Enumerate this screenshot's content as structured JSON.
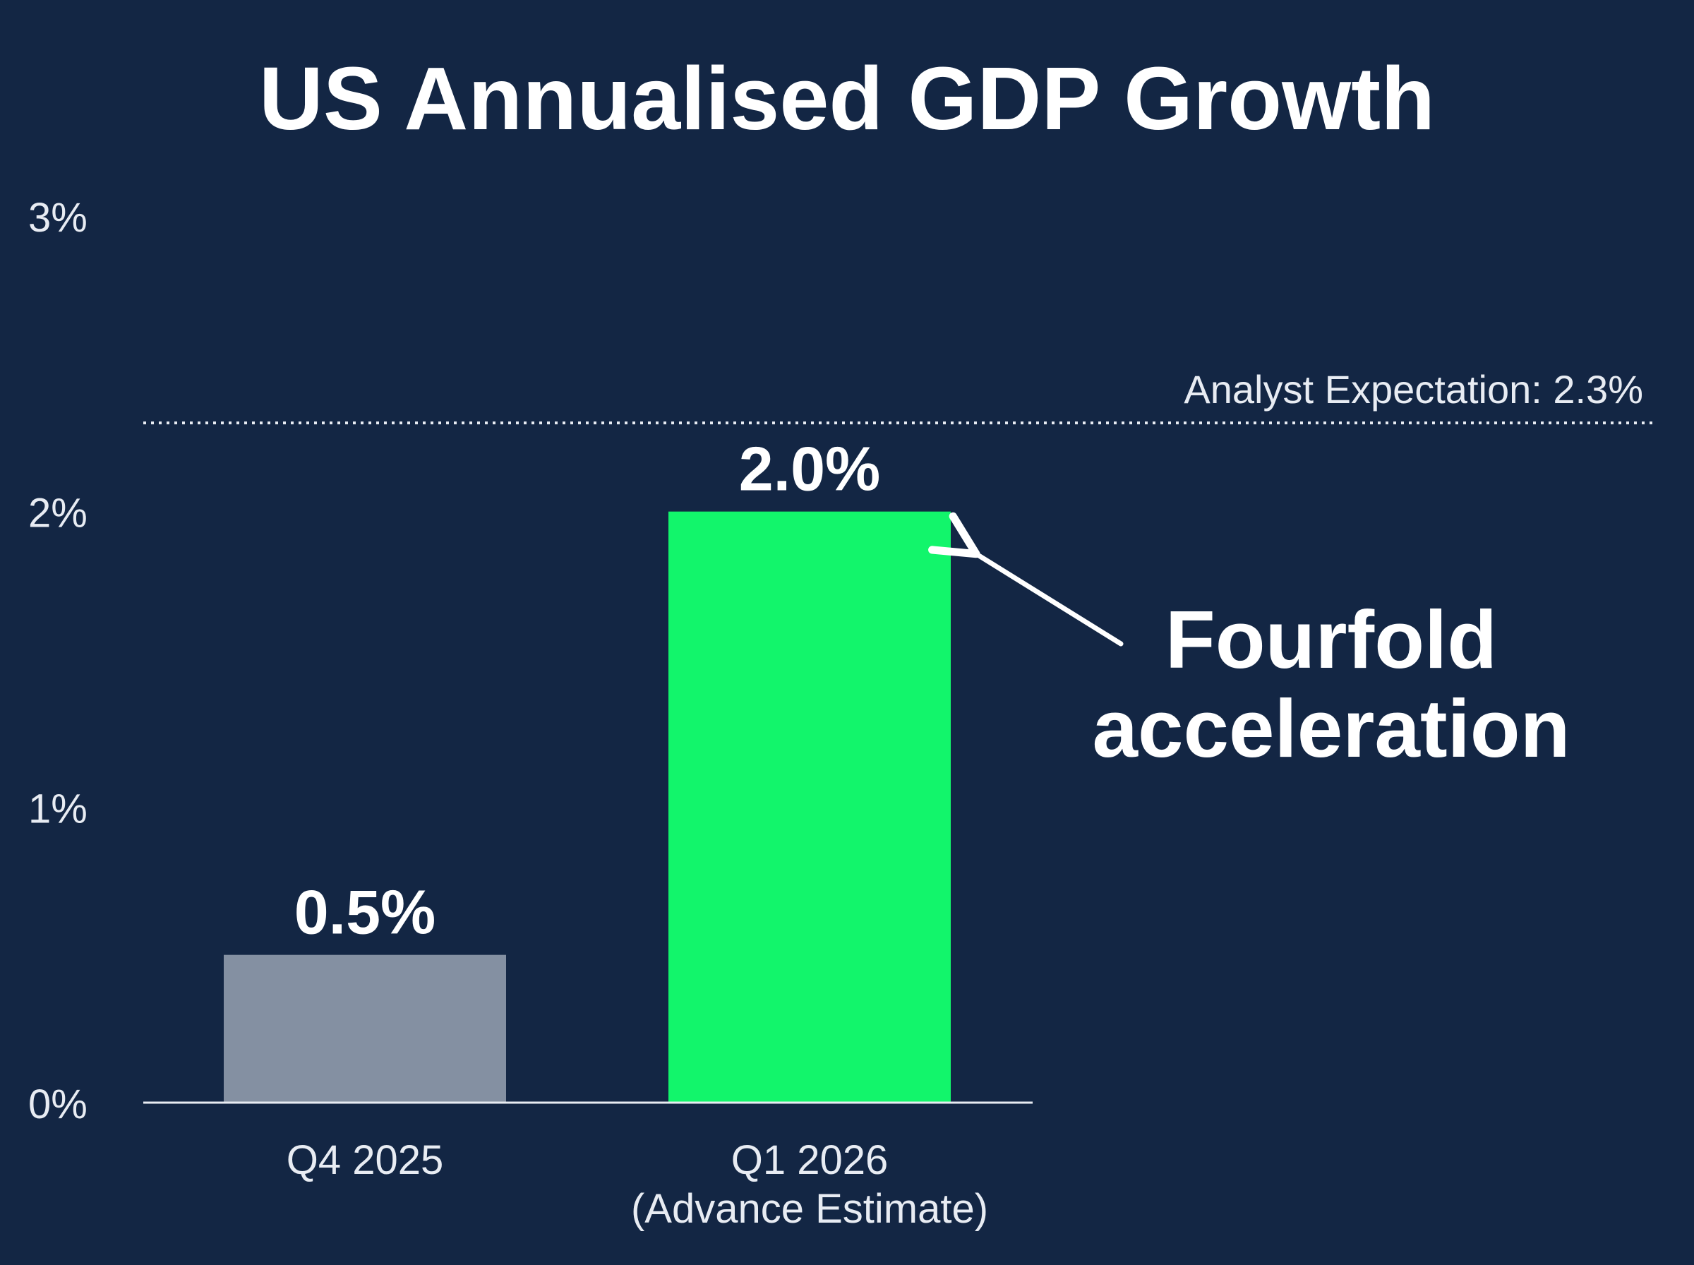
{
  "colors": {
    "background": "#132644",
    "text": "#ffffff",
    "axis_text": "#e8ecf3",
    "q4_bar": "#8490a2",
    "q1_bar": "#12f56b",
    "reference_line": "#e8ecf3"
  },
  "chart_data": {
    "type": "bar",
    "title": "US Annualised GDP Growth",
    "xlabel": "",
    "ylabel": "",
    "ylim": [
      0,
      3
    ],
    "yticks": [
      {
        "value": 0,
        "label": "0%"
      },
      {
        "value": 1,
        "label": "1%"
      },
      {
        "value": 2,
        "label": "2%"
      },
      {
        "value": 3,
        "label": "3%"
      }
    ],
    "grid": false,
    "categories": [
      {
        "line1": "Q4 2025",
        "line2": ""
      },
      {
        "line1": "Q1 2026",
        "line2": "(Advance Estimate)"
      }
    ],
    "values": [
      0.5,
      2.0
    ],
    "value_labels": [
      "0.5%",
      "2.0%"
    ],
    "bar_colors": [
      "#8490a2",
      "#12f56b"
    ],
    "reference_line": {
      "value": 2.3,
      "label": "Analyst Expectation: 2.3%",
      "style": "dotted"
    },
    "annotation": {
      "line1": "Fourfold",
      "line2": "acceleration",
      "target_category": 1
    }
  }
}
